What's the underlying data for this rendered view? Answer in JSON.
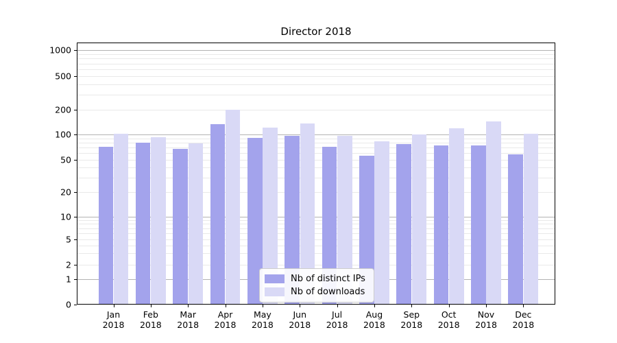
{
  "figure": {
    "title": "Director 2018"
  },
  "chart_data": {
    "type": "bar",
    "title": "Director 2018",
    "categories": [
      "Jan 2018",
      "Feb 2018",
      "Mar 2018",
      "Apr 2018",
      "May 2018",
      "Jun 2018",
      "Jul 2018",
      "Aug 2018",
      "Sep 2018",
      "Oct 2018",
      "Nov 2018",
      "Dec 2018"
    ],
    "series": [
      {
        "name": "Nb of distinct IPs",
        "color": "#a3a3ec",
        "values": [
          72,
          80,
          68,
          133,
          91,
          97,
          72,
          56,
          77,
          74,
          74,
          58
        ]
      },
      {
        "name": "Nb of downloads",
        "color": "#d9d9f6",
        "values": [
          102,
          92,
          79,
          200,
          121,
          135,
          97,
          83,
          100,
          120,
          145,
          102
        ]
      }
    ],
    "xlabel": "",
    "ylabel": "",
    "yscale": "symlog",
    "yticks": [
      0,
      1,
      2,
      5,
      10,
      20,
      50,
      100,
      200,
      500,
      1000
    ],
    "ylim": [
      0,
      1250
    ],
    "grid": true,
    "legend": {
      "position": "lower center",
      "entries": [
        "Nb of distinct IPs",
        "Nb of downloads"
      ]
    }
  },
  "colors": {
    "bar_distinct_ips": "#a3a3ec",
    "bar_downloads": "#d9d9f6",
    "grid_major": "#b2b2b2",
    "grid_minor": "#e9e9e9",
    "legend_border": "#cccccc",
    "text": "#000000"
  }
}
